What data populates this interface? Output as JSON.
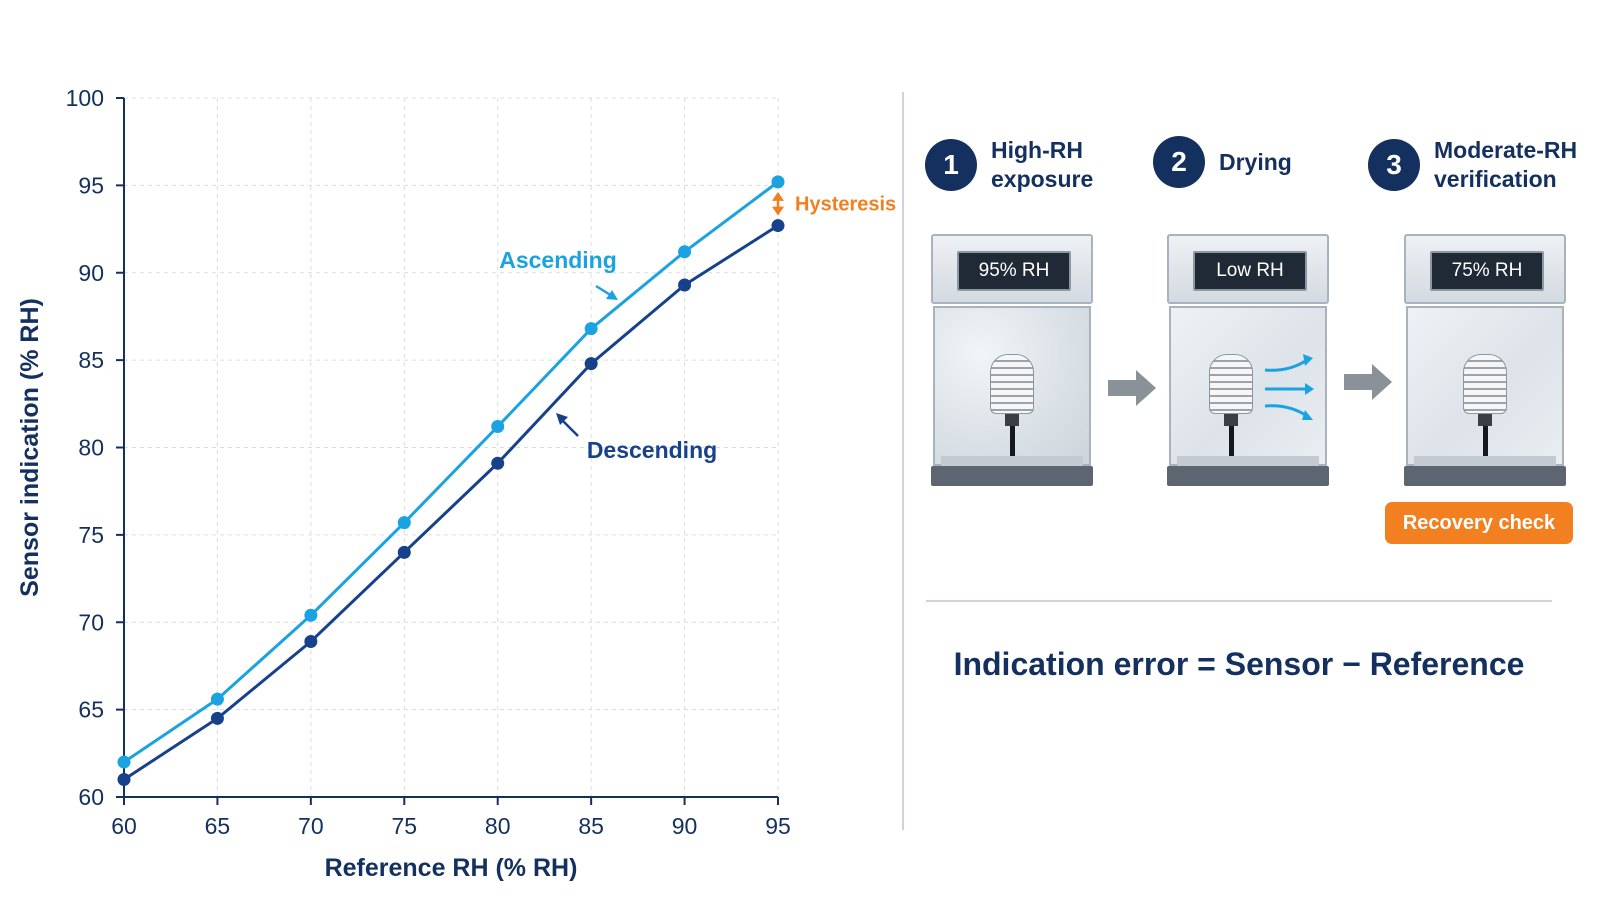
{
  "chart_data": {
    "type": "line",
    "xlabel": "Reference RH (% RH)",
    "ylabel": "Sensor indication (% RH)",
    "xlim": [
      60,
      95
    ],
    "ylim": [
      60,
      100
    ],
    "xticks": [
      60,
      65,
      70,
      75,
      80,
      85,
      90,
      95
    ],
    "yticks": [
      60,
      65,
      70,
      75,
      80,
      85,
      90,
      95,
      100
    ],
    "grid": true,
    "series": [
      {
        "name": "Ascending",
        "color": "#1aa3e0",
        "x": [
          60,
          65,
          70,
          75,
          80,
          85,
          90,
          95
        ],
        "y": [
          62.0,
          65.6,
          70.4,
          75.7,
          81.2,
          86.8,
          91.2,
          95.2
        ]
      },
      {
        "name": "Descending",
        "color": "#17418a",
        "x": [
          60,
          65,
          70,
          75,
          80,
          85,
          90,
          95
        ],
        "y": [
          61.0,
          64.5,
          68.9,
          74.0,
          79.1,
          84.8,
          89.3,
          92.7
        ]
      }
    ],
    "annotation": {
      "label": "Hysteresis",
      "color": "#f28021",
      "x": 95,
      "y_from": 92.7,
      "y_to": 95.2
    }
  },
  "process": {
    "steps": [
      {
        "number": "1",
        "title": "High-RH\nexposure",
        "display": "95% RH"
      },
      {
        "number": "2",
        "title": "Drying",
        "display": "Low RH"
      },
      {
        "number": "3",
        "title": "Moderate-RH\nverification",
        "display": "75% RH"
      }
    ],
    "badge": "Recovery check",
    "icons": [
      "right-arrow-icon",
      "airflow-arrows-icon"
    ],
    "colors": {
      "navy": "#14305e",
      "accent": "#f28021",
      "airflow": "#1aa3e0"
    }
  },
  "formula": "Indication error = Sensor − Reference"
}
